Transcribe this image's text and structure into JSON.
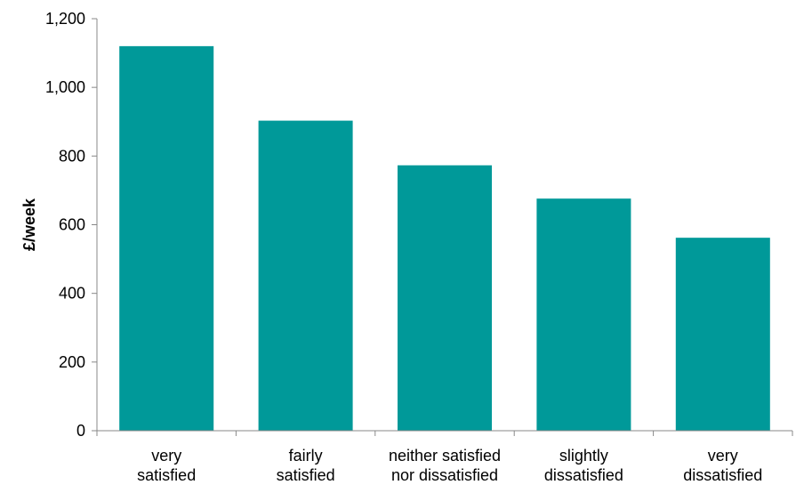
{
  "chart_data": {
    "type": "bar",
    "categories": [
      [
        "very",
        "satisfied"
      ],
      [
        "fairly",
        "satisfied"
      ],
      [
        "neither satisfied",
        "nor dissatisfied"
      ],
      [
        "slightly",
        "dissatisfied"
      ],
      [
        "very",
        "dissatisfied"
      ]
    ],
    "values": [
      1120,
      903,
      773,
      676,
      562
    ],
    "ylabel": "£/week",
    "ylim": [
      0,
      1200
    ],
    "yticks": [
      0,
      200,
      400,
      600,
      800,
      1000,
      1200
    ],
    "ytick_labels": [
      "0",
      "200",
      "400",
      "600",
      "800",
      "1,000",
      "1,200"
    ],
    "bar_color": "#009999",
    "grid": false,
    "legend": "none"
  }
}
